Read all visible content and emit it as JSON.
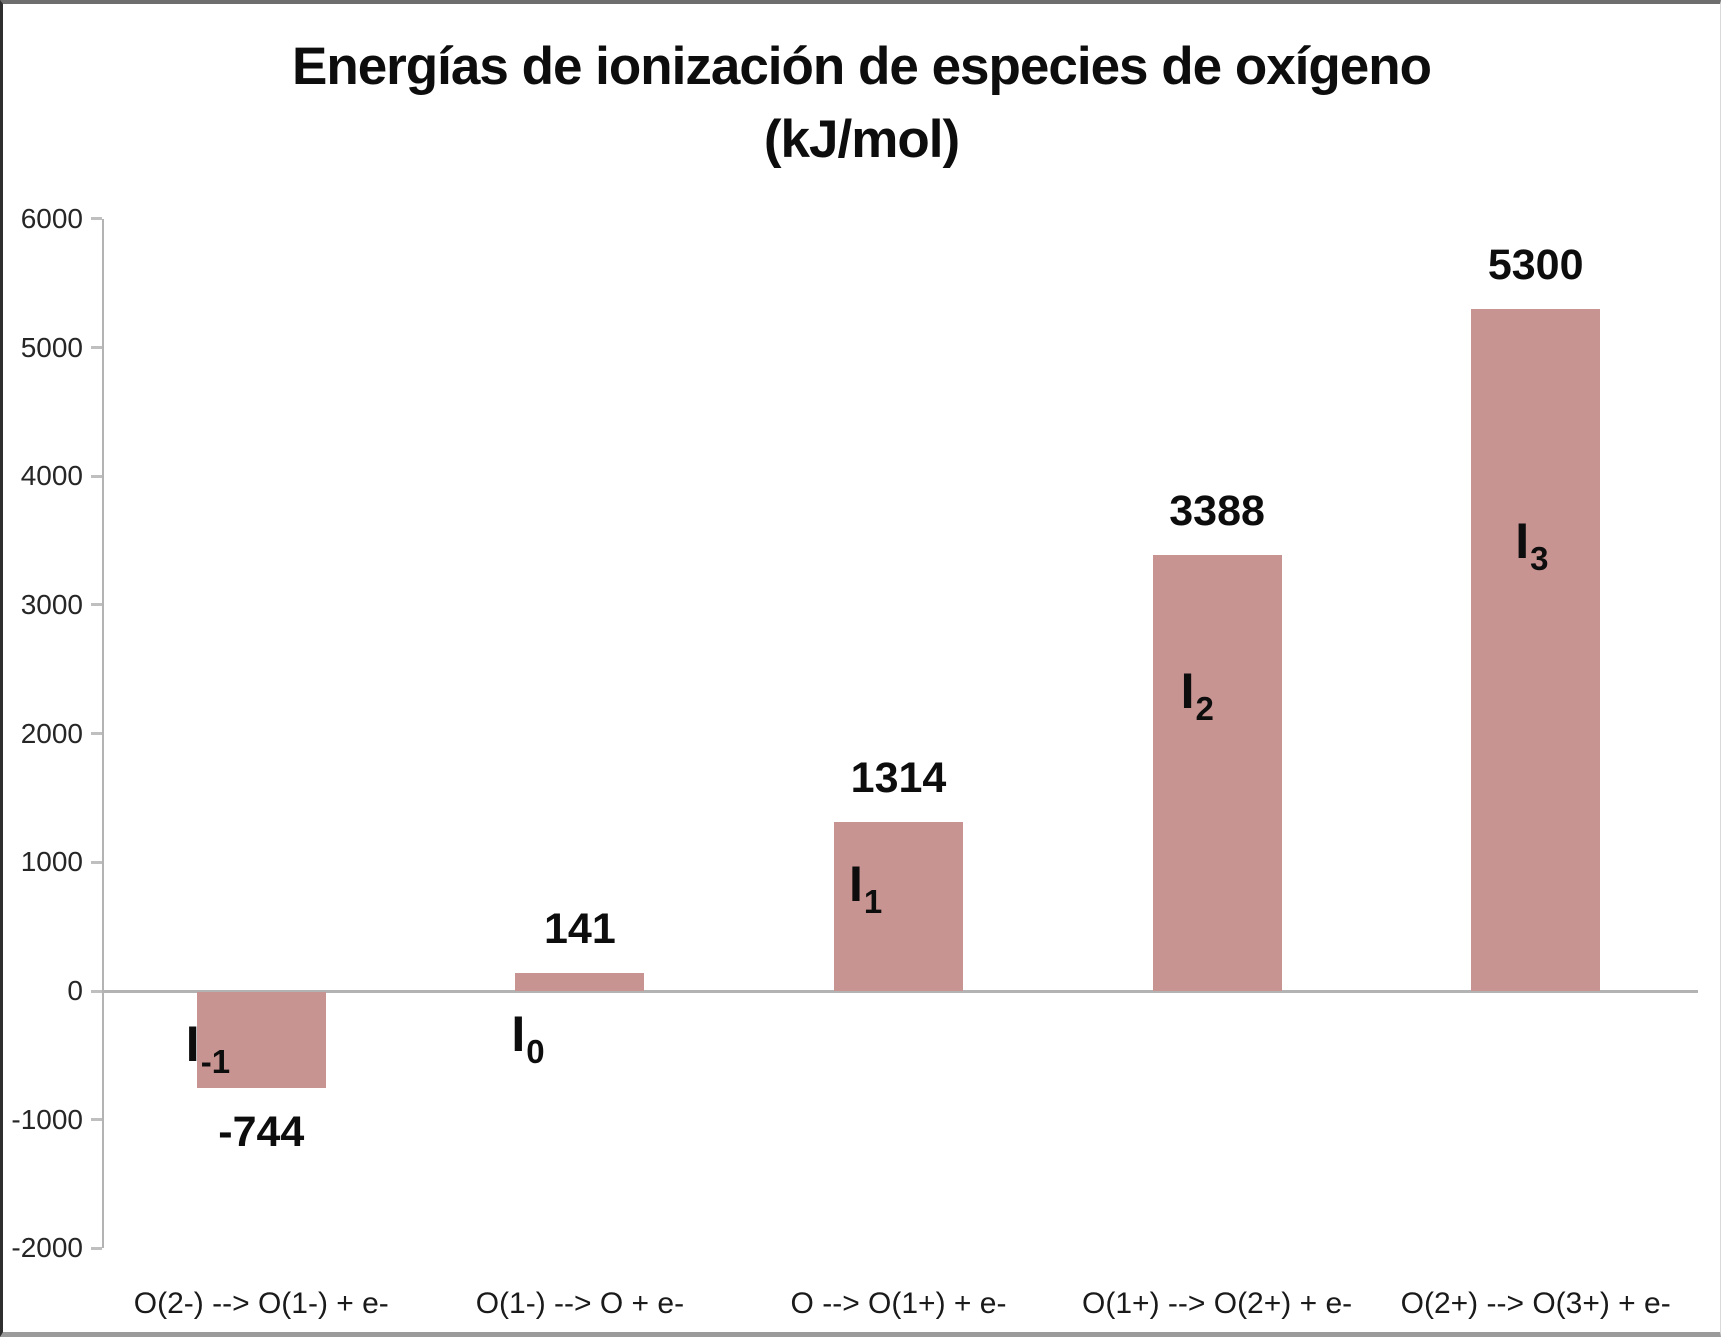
{
  "chart_data": {
    "type": "bar",
    "title": "Energías de ionización de especies de oxígeno",
    "subtitle": "(kJ/mol)",
    "categories": [
      "O(2-) --> O(1-) + e-",
      "O(1-) --> O + e-",
      "O --> O(1+) + e-",
      "O(1+) --> O(2+) + e-",
      "O(2+) --> O(3+) + e-"
    ],
    "values": [
      -744,
      141,
      1314,
      3388,
      5300
    ],
    "value_labels": [
      "-744",
      "141",
      "1314",
      "3388",
      "5300"
    ],
    "series_labels": [
      {
        "base": "I",
        "sub": "-1"
      },
      {
        "base": "I",
        "sub": "0"
      },
      {
        "base": "I",
        "sub": "1"
      },
      {
        "base": "I",
        "sub": "2"
      },
      {
        "base": "I",
        "sub": "3"
      }
    ],
    "ylabel": "",
    "xlabel": "",
    "ylim": [
      -2000,
      6000
    ],
    "ytick_step": 1000,
    "ytick_labels": [
      "6000",
      "5000",
      "4000",
      "3000",
      "2000",
      "1000",
      "0",
      "-1000",
      "-2000"
    ],
    "grid": false,
    "legend": false,
    "colors": {
      "bar": "#c79492",
      "axis": "#b3b3b3",
      "tick": "#bfbfbf",
      "text": "#0d0d0d"
    }
  }
}
